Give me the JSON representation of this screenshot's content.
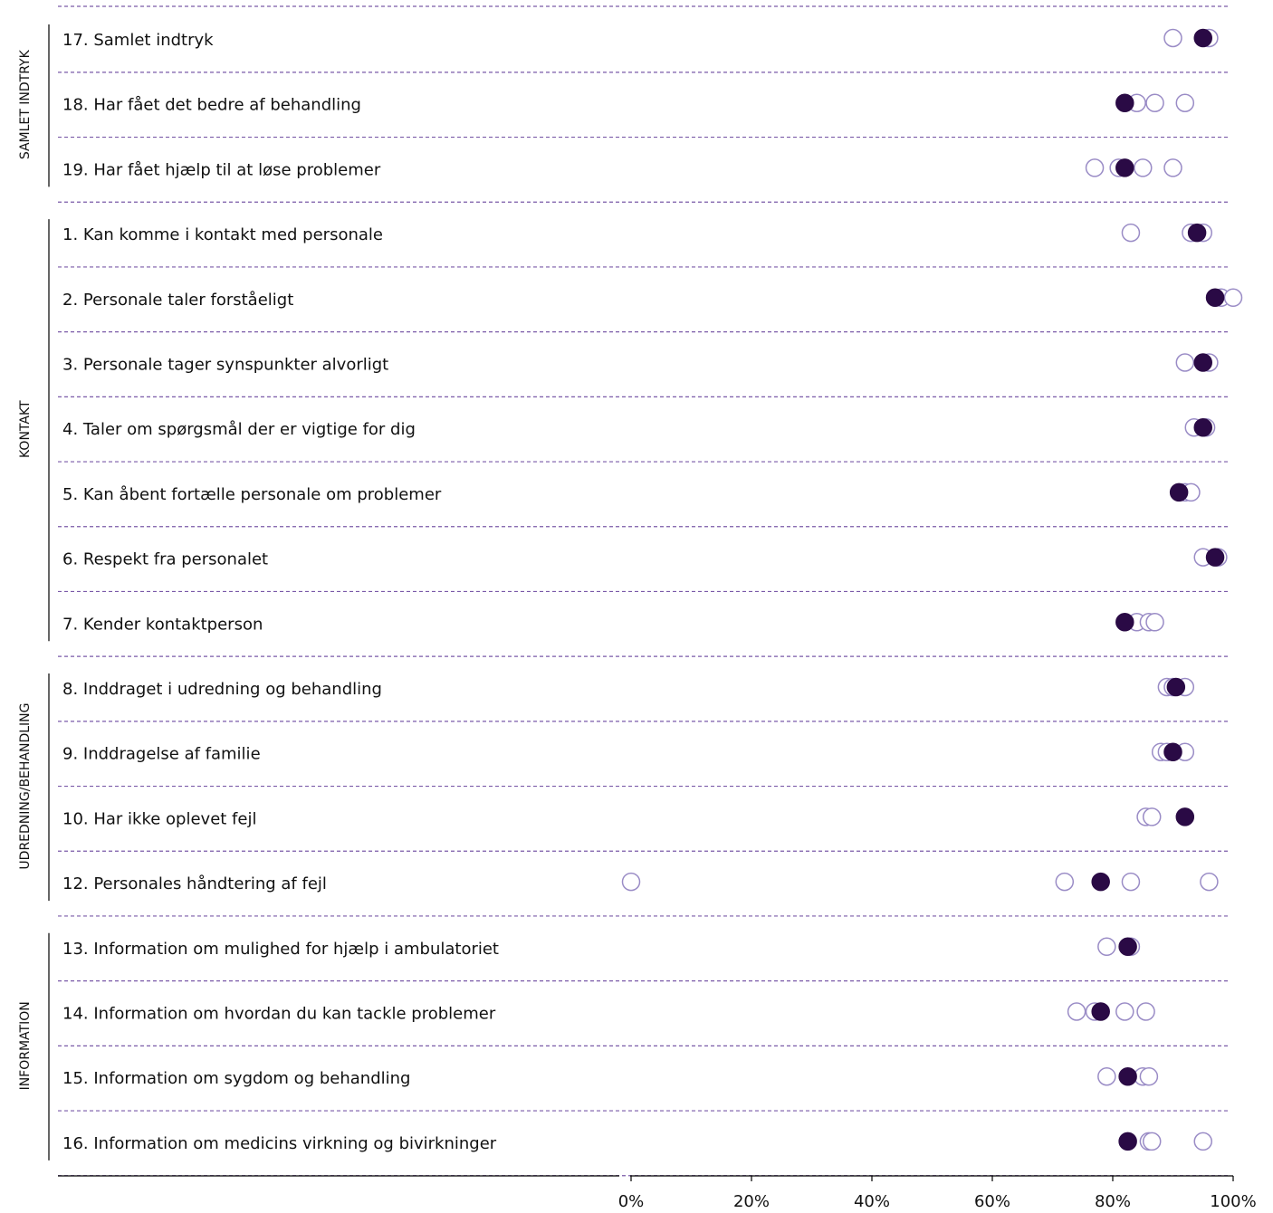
{
  "chart_data": {
    "type": "scatter",
    "title": "",
    "xlabel": "",
    "ylabel": "",
    "xlim": [
      0,
      100
    ],
    "x_ticks": [
      "0%",
      "20%",
      "40%",
      "60%",
      "80%",
      "100%"
    ],
    "grid": "dashed row separators",
    "colors": {
      "highlight": "#2a0a45",
      "other_stroke": "#9a8cc6",
      "separator": "#7a5aa8",
      "axis": "#000000"
    },
    "groups": [
      {
        "label": "SAMLET INDTRYK",
        "rows": [
          {
            "label": "17. Samlet indtryk",
            "highlight": 95,
            "others": [
              90,
              96
            ]
          },
          {
            "label": "18. Har fået det bedre af behandling",
            "highlight": 82,
            "others": [
              84,
              87,
              92
            ]
          },
          {
            "label": "19. Har fået hjælp til at løse problemer",
            "highlight": 82,
            "others": [
              77,
              81,
              85,
              90
            ]
          }
        ]
      },
      {
        "label": "KONTAKT",
        "rows": [
          {
            "label": "1. Kan komme i kontakt med personale",
            "highlight": 94,
            "others": [
              83,
              93,
              95
            ]
          },
          {
            "label": "2. Personale taler forståeligt",
            "highlight": 97,
            "others": [
              98,
              100
            ]
          },
          {
            "label": "3. Personale tager synspunkter alvorligt",
            "highlight": 95,
            "others": [
              92,
              96
            ]
          },
          {
            "label": "4. Taler om spørgsmål der er vigtige for dig",
            "highlight": 95,
            "others": [
              93.5,
              95.5
            ]
          },
          {
            "label": "5. Kan åbent fortælle personale om problemer",
            "highlight": 91,
            "others": [
              92,
              93
            ]
          },
          {
            "label": "6. Respekt fra personalet",
            "highlight": 97,
            "others": [
              95,
              97.5
            ]
          },
          {
            "label": "7. Kender kontaktperson",
            "highlight": 82,
            "others": [
              84,
              86,
              87
            ]
          }
        ]
      },
      {
        "label": "UDREDNING/BEHANDLING",
        "rows": [
          {
            "label": "8. Inddraget i udredning og behandling",
            "highlight": 90.5,
            "others": [
              89,
              90,
              92
            ]
          },
          {
            "label": "9. Inddragelse af familie",
            "highlight": 90,
            "others": [
              88,
              89,
              92
            ]
          },
          {
            "label": "10. Har ikke oplevet fejl",
            "highlight": 92,
            "others": [
              85.5,
              86.5
            ]
          },
          {
            "label": "12. Personales håndtering af fejl",
            "highlight": 78,
            "others": [
              0,
              72,
              83,
              96
            ]
          }
        ]
      },
      {
        "label": "INFORMATION",
        "rows": [
          {
            "label": "13. Information om mulighed for hjælp i ambulatoriet",
            "highlight": 82.5,
            "others": [
              79,
              83
            ]
          },
          {
            "label": "14. Information om hvordan du kan tackle problemer",
            "highlight": 78,
            "others": [
              74,
              77,
              82,
              85.5
            ]
          },
          {
            "label": "15. Information om sygdom og behandling",
            "highlight": 82.5,
            "others": [
              79,
              85,
              86
            ]
          },
          {
            "label": "16. Information om medicins virkning og bivirkninger",
            "highlight": 82.5,
            "others": [
              86,
              86.5,
              95
            ]
          }
        ]
      }
    ]
  }
}
